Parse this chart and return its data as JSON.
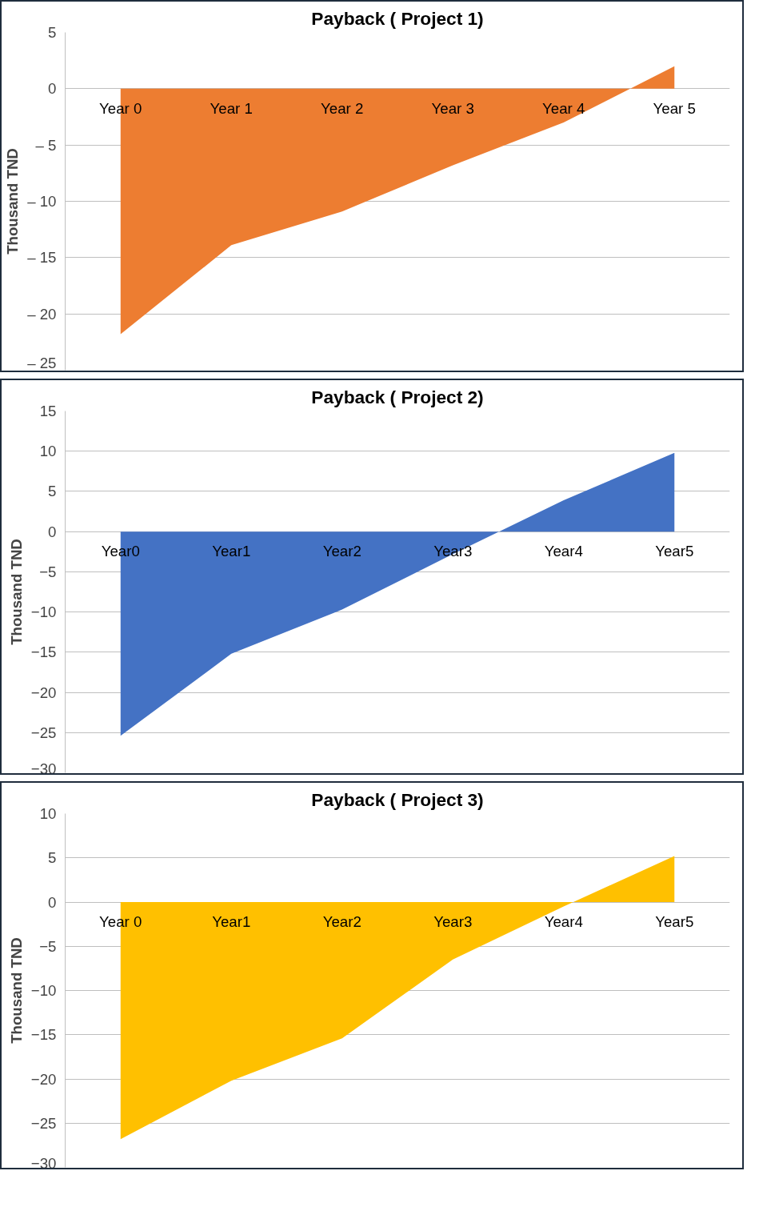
{
  "chart_data": [
    {
      "type": "area",
      "title": "Payback ( Project 1)",
      "ylabel": "Thousand TND",
      "categories": [
        "Year 0",
        "Year 1",
        "Year 2",
        "Year 3",
        "Year 4",
        "Year 5"
      ],
      "series": [
        {
          "color": "#ed7d31",
          "values": [
            -21.8,
            -13.9,
            -10.9,
            -6.8,
            -3.0,
            2.0
          ]
        }
      ],
      "ylim": [
        -25,
        5
      ],
      "yticks": [
        5,
        0,
        {
          "value": -5,
          "label": "– 5"
        },
        {
          "value": -10,
          "label": "– 10"
        },
        {
          "value": -15,
          "label": "– 15"
        },
        {
          "value": -20,
          "label": "– 20"
        },
        {
          "value": -25,
          "label": "– 25"
        }
      ],
      "grid": "y"
    },
    {
      "type": "area",
      "title": "Payback ( Project 2)",
      "ylabel": "Thousand TND",
      "categories": [
        "Year0",
        "Year1",
        "Year2",
        "Year3",
        "Year4",
        "Year5"
      ],
      "series": [
        {
          "color": "#4472c4",
          "values": [
            -25.4,
            -15.2,
            -9.7,
            -2.8,
            3.9,
            9.8
          ]
        }
      ],
      "ylim": [
        -30,
        15
      ],
      "yticks": [
        15,
        10,
        5,
        0,
        {
          "value": -5,
          "label": "−5"
        },
        {
          "value": -10,
          "label": "−10"
        },
        {
          "value": -15,
          "label": "−15"
        },
        {
          "value": -20,
          "label": "−20"
        },
        {
          "value": -25,
          "label": "−25"
        },
        {
          "value": -30,
          "label": "−30"
        }
      ],
      "grid": "y"
    },
    {
      "type": "area",
      "title": "Payback ( Project 3)",
      "ylabel": "Thousand TND",
      "categories": [
        "Year 0",
        "Year1",
        "Year2",
        "Year3",
        "Year4",
        "Year5"
      ],
      "series": [
        {
          "color": "#ffc000",
          "values": [
            -26.8,
            -20.2,
            -15.4,
            -6.5,
            -0.5,
            5.2
          ]
        }
      ],
      "ylim": [
        -30,
        10
      ],
      "yticks": [
        10,
        5,
        0,
        -5,
        -10,
        -15,
        {
          "value": -20,
          "label": "−20"
        },
        -25,
        -30
      ],
      "grid": "y"
    }
  ]
}
